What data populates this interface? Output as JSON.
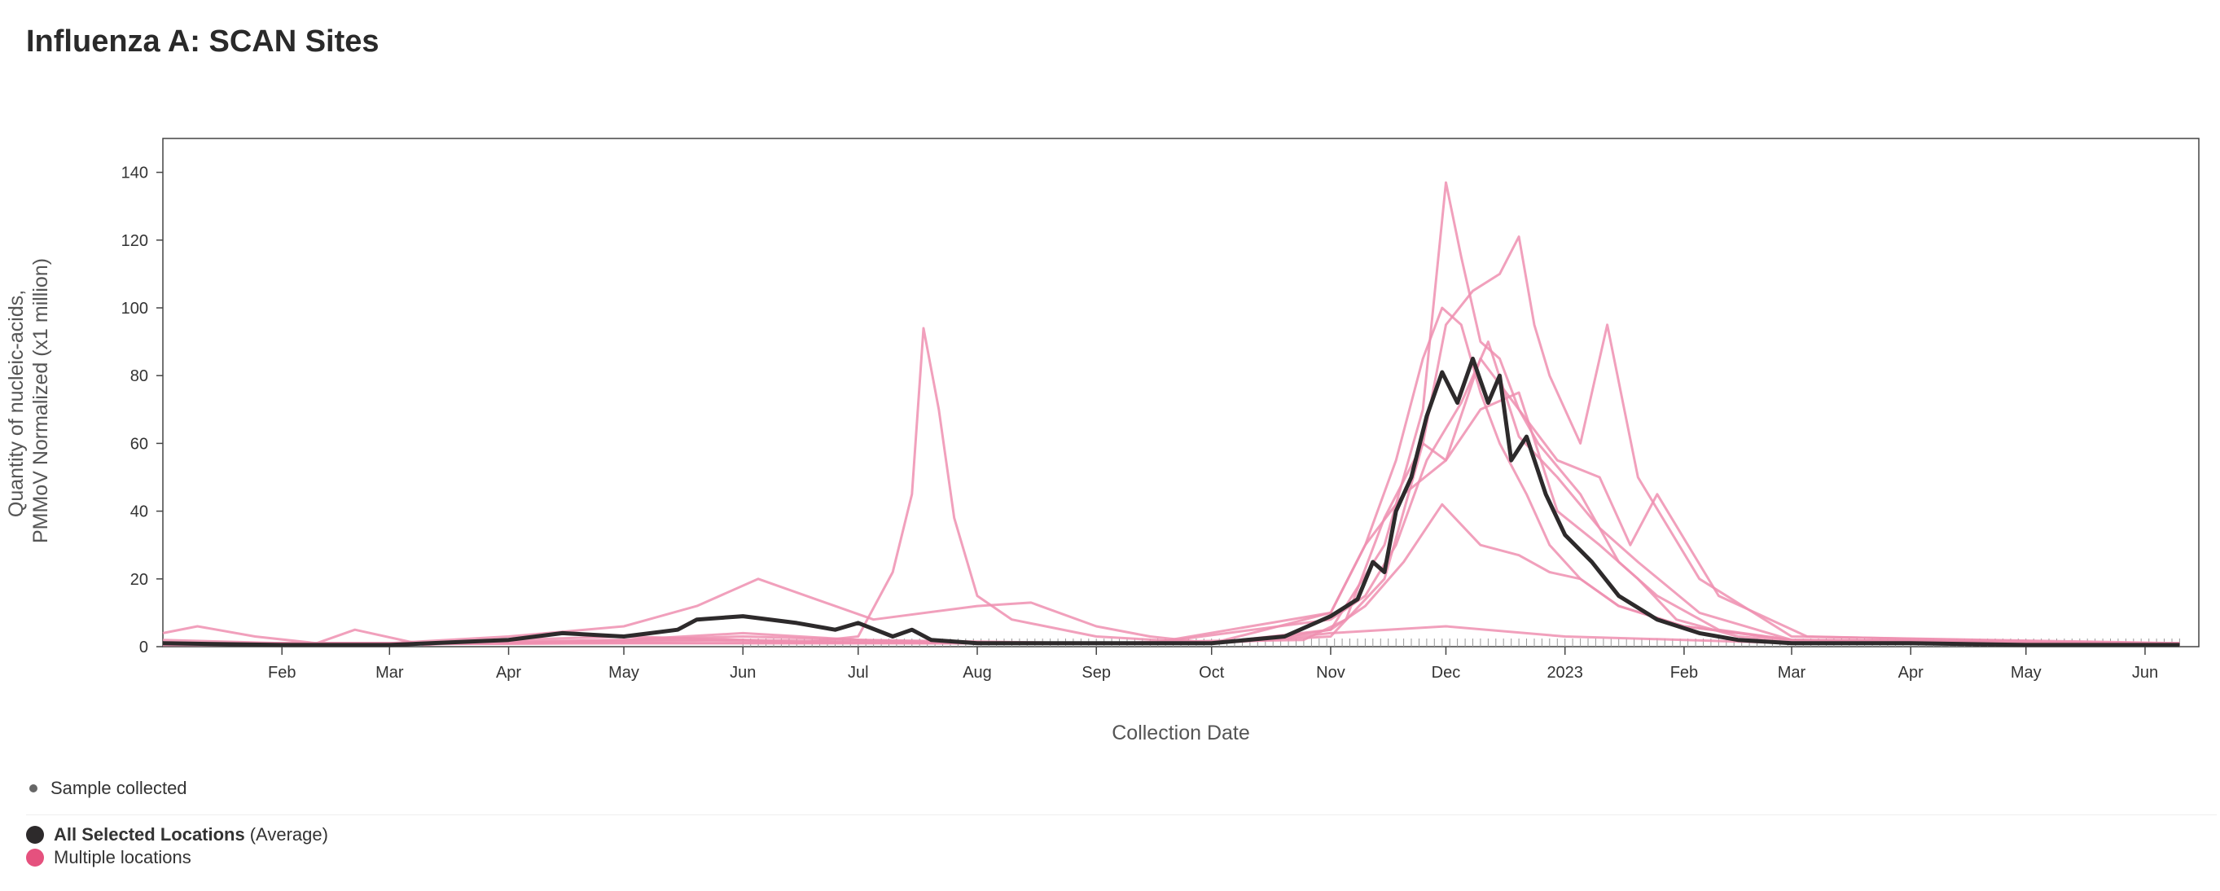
{
  "title": "Influenza A: SCAN Sites",
  "legend": {
    "sample": "Sample collected",
    "average_bold": "All Selected Locations",
    "average_suffix": "(Average)",
    "multiple": "Multiple locations"
  },
  "colors": {
    "average": "#2d2a2b",
    "locations": "#ef8fb0",
    "legend_pink": "#e5517e",
    "sample_tick": "#999999"
  },
  "chart_data": {
    "type": "line",
    "title": "Influenza A: SCAN Sites",
    "xlabel": "Collection Date",
    "ylabel": [
      "Quantity of nucleic-acids,",
      "PMMoV Normalized (x1 million)"
    ],
    "xlim": [
      "2022-01-01",
      "2023-06-15"
    ],
    "ylim": [
      0,
      150
    ],
    "y_ticks": [
      0,
      20,
      40,
      60,
      80,
      100,
      120,
      140
    ],
    "x_ticks": [
      {
        "date": "2022-02-01",
        "label": "Feb"
      },
      {
        "date": "2022-03-01",
        "label": "Mar"
      },
      {
        "date": "2022-04-01",
        "label": "Apr"
      },
      {
        "date": "2022-05-01",
        "label": "May"
      },
      {
        "date": "2022-06-01",
        "label": "Jun"
      },
      {
        "date": "2022-07-01",
        "label": "Jul"
      },
      {
        "date": "2022-08-01",
        "label": "Aug"
      },
      {
        "date": "2022-09-01",
        "label": "Sep"
      },
      {
        "date": "2022-10-01",
        "label": "Oct"
      },
      {
        "date": "2022-11-01",
        "label": "Nov"
      },
      {
        "date": "2022-12-01",
        "label": "Dec"
      },
      {
        "date": "2023-01-01",
        "label": "2023"
      },
      {
        "date": "2023-02-01",
        "label": "Feb"
      },
      {
        "date": "2023-03-01",
        "label": "Mar"
      },
      {
        "date": "2023-04-01",
        "label": "Apr"
      },
      {
        "date": "2023-05-01",
        "label": "May"
      },
      {
        "date": "2023-06-01",
        "label": "Jun"
      }
    ],
    "series": [
      {
        "role": "average",
        "x": [
          "2022-01-01",
          "2022-02-01",
          "2022-03-01",
          "2022-04-01",
          "2022-04-15",
          "2022-05-01",
          "2022-05-15",
          "2022-05-20",
          "2022-06-01",
          "2022-06-15",
          "2022-06-25",
          "2022-07-01",
          "2022-07-10",
          "2022-07-15",
          "2022-07-20",
          "2022-08-01",
          "2022-09-01",
          "2022-10-01",
          "2022-10-20",
          "2022-11-01",
          "2022-11-08",
          "2022-11-12",
          "2022-11-15",
          "2022-11-18",
          "2022-11-22",
          "2022-11-26",
          "2022-11-30",
          "2022-12-04",
          "2022-12-08",
          "2022-12-12",
          "2022-12-15",
          "2022-12-18",
          "2022-12-22",
          "2022-12-27",
          "2023-01-01",
          "2023-01-08",
          "2023-01-15",
          "2023-01-25",
          "2023-02-05",
          "2023-02-15",
          "2023-03-01",
          "2023-04-01",
          "2023-05-01",
          "2023-06-10"
        ],
        "y": [
          1,
          0.5,
          0.5,
          2,
          4,
          3,
          5,
          8,
          9,
          7,
          5,
          7,
          3,
          5,
          2,
          1,
          1,
          1,
          3,
          9,
          14,
          25,
          22,
          40,
          50,
          68,
          81,
          72,
          85,
          72,
          80,
          55,
          62,
          45,
          33,
          25,
          15,
          8,
          4,
          2,
          1,
          1,
          0.5,
          0.5
        ]
      },
      {
        "role": "location",
        "x": [
          "2022-01-01",
          "2022-01-10",
          "2022-01-25",
          "2022-02-10",
          "2022-02-20",
          "2022-03-10",
          "2022-04-01",
          "2022-05-01",
          "2022-06-01",
          "2022-06-15",
          "2022-07-01",
          "2022-07-10",
          "2022-07-15",
          "2022-07-18",
          "2022-07-22",
          "2022-07-26",
          "2022-08-01",
          "2022-08-10",
          "2022-09-01",
          "2022-10-01",
          "2022-10-15",
          "2022-11-01",
          "2022-12-01",
          "2023-01-01",
          "2023-02-01",
          "2023-03-01",
          "2023-04-01",
          "2023-06-10"
        ],
        "y": [
          4,
          6,
          3,
          1,
          5,
          0.5,
          2,
          3,
          2,
          1,
          3,
          22,
          45,
          94,
          70,
          38,
          15,
          8,
          3,
          1,
          2,
          4,
          6,
          3,
          2,
          1,
          1,
          0.5
        ]
      },
      {
        "role": "location",
        "x": [
          "2022-01-01",
          "2022-02-01",
          "2022-03-01",
          "2022-04-01",
          "2022-05-01",
          "2022-05-20",
          "2022-06-05",
          "2022-06-20",
          "2022-07-05",
          "2022-08-01",
          "2022-08-15",
          "2022-09-01",
          "2022-09-15",
          "2022-10-01",
          "2022-10-15",
          "2022-11-01",
          "2022-11-10",
          "2022-11-18",
          "2022-11-25",
          "2022-11-30",
          "2022-12-05",
          "2022-12-10",
          "2022-12-15",
          "2022-12-22",
          "2022-12-28",
          "2023-01-05",
          "2023-01-15",
          "2023-02-01",
          "2023-03-01",
          "2023-06-10"
        ],
        "y": [
          2,
          1,
          1,
          3,
          6,
          12,
          20,
          14,
          8,
          12,
          13,
          6,
          3,
          1,
          5,
          10,
          30,
          55,
          85,
          100,
          95,
          75,
          60,
          45,
          30,
          20,
          12,
          6,
          2,
          1
        ]
      },
      {
        "role": "location",
        "x": [
          "2022-01-01",
          "2022-03-01",
          "2022-05-01",
          "2022-06-01",
          "2022-07-01",
          "2022-09-01",
          "2022-10-15",
          "2022-11-01",
          "2022-11-15",
          "2022-11-25",
          "2022-12-01",
          "2022-12-05",
          "2022-12-10",
          "2022-12-15",
          "2022-12-20",
          "2022-12-25",
          "2023-01-05",
          "2023-01-15",
          "2023-01-25",
          "2023-02-10",
          "2023-03-01",
          "2023-06-10"
        ],
        "y": [
          1,
          1,
          2,
          4,
          2,
          1,
          2,
          5,
          30,
          70,
          137,
          115,
          90,
          85,
          70,
          60,
          45,
          25,
          15,
          5,
          2,
          1
        ]
      },
      {
        "role": "location",
        "x": [
          "2022-01-01",
          "2022-04-01",
          "2022-06-01",
          "2022-08-01",
          "2022-10-01",
          "2022-11-01",
          "2022-11-15",
          "2022-11-25",
          "2022-12-01",
          "2022-12-08",
          "2022-12-15",
          "2022-12-20",
          "2022-12-24",
          "2022-12-28",
          "2023-01-05",
          "2023-01-12",
          "2023-01-20",
          "2023-02-05",
          "2023-03-01",
          "2023-06-10"
        ],
        "y": [
          1,
          1,
          2,
          1,
          1,
          3,
          20,
          60,
          95,
          105,
          110,
          121,
          95,
          80,
          60,
          95,
          50,
          20,
          3,
          1
        ]
      },
      {
        "role": "location",
        "x": [
          "2022-01-01",
          "2022-05-01",
          "2022-07-01",
          "2022-09-01",
          "2022-10-25",
          "2022-11-05",
          "2022-11-15",
          "2022-11-25",
          "2022-12-01",
          "2022-12-10",
          "2022-12-20",
          "2022-12-30",
          "2023-01-10",
          "2023-01-18",
          "2023-01-25",
          "2023-02-10",
          "2023-03-05",
          "2023-06-10"
        ],
        "y": [
          0.5,
          1,
          1,
          1,
          2,
          8,
          38,
          60,
          55,
          85,
          70,
          55,
          50,
          30,
          45,
          15,
          3,
          0.5
        ]
      },
      {
        "role": "location",
        "x": [
          "2022-01-01",
          "2022-04-01",
          "2022-06-01",
          "2022-08-01",
          "2022-10-01",
          "2022-11-01",
          "2022-11-10",
          "2022-11-20",
          "2022-11-30",
          "2022-12-10",
          "2022-12-20",
          "2022-12-28",
          "2023-01-05",
          "2023-01-15",
          "2023-02-01",
          "2023-03-01",
          "2023-06-10"
        ],
        "y": [
          1,
          1,
          3,
          1,
          1,
          5,
          12,
          25,
          42,
          30,
          27,
          22,
          20,
          12,
          6,
          2,
          1
        ]
      },
      {
        "role": "location",
        "x": [
          "2022-01-01",
          "2022-05-01",
          "2022-07-01",
          "2022-09-15",
          "2022-11-01",
          "2022-11-10",
          "2022-11-18",
          "2022-11-26",
          "2022-12-05",
          "2022-12-12",
          "2022-12-20",
          "2022-12-30",
          "2023-01-10",
          "2023-01-20",
          "2023-02-05",
          "2023-03-01",
          "2023-06-10"
        ],
        "y": [
          0.5,
          1,
          1,
          1,
          8,
          15,
          30,
          55,
          72,
          90,
          62,
          50,
          35,
          25,
          10,
          2,
          0.5
        ]
      },
      {
        "role": "location",
        "x": [
          "2022-01-01",
          "2022-03-15",
          "2022-05-15",
          "2022-07-15",
          "2022-09-15",
          "2022-11-01",
          "2022-11-10",
          "2022-11-20",
          "2022-12-01",
          "2022-12-10",
          "2022-12-20",
          "2022-12-30",
          "2023-01-10",
          "2023-01-20",
          "2023-01-30",
          "2023-02-15",
          "2023-03-10",
          "2023-06-10"
        ],
        "y": [
          1,
          1,
          2,
          1,
          1,
          10,
          30,
          45,
          55,
          70,
          75,
          40,
          30,
          20,
          8,
          3,
          1,
          1
        ]
      }
    ]
  }
}
